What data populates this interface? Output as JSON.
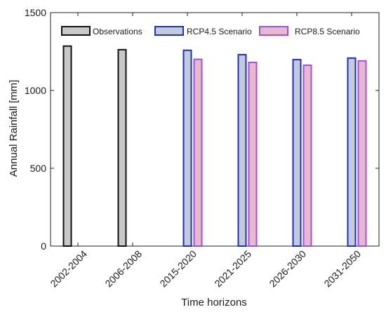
{
  "chart_data": {
    "type": "bar",
    "xlabel": "Time horizons",
    "ylabel": "Annual Rainfall [mm]",
    "ylim": [
      0,
      1500
    ],
    "yticks": [
      0,
      500,
      1000,
      1500
    ],
    "categories": [
      "2002-2004",
      "2006-2008",
      "2015-2020",
      "2021-2025",
      "2026-2030",
      "2031-2050"
    ],
    "series": [
      {
        "name": "Observations",
        "values": [
          1285,
          1262,
          null,
          null,
          null,
          null
        ],
        "fill": "#c8c8c8",
        "stroke": "#111111"
      },
      {
        "name": "RCP4.5 Scenario",
        "values": [
          null,
          null,
          1258,
          1230,
          1198,
          1208
        ],
        "fill": "#c3cbd8",
        "stroke": "#1f2ec9"
      },
      {
        "name": "RCP8.5 Scenario",
        "values": [
          null,
          null,
          1200,
          1180,
          1162,
          1190
        ],
        "fill": "#e7b9cf",
        "stroke": "#a24fe0"
      }
    ],
    "legend_position": "top",
    "grid": false
  }
}
